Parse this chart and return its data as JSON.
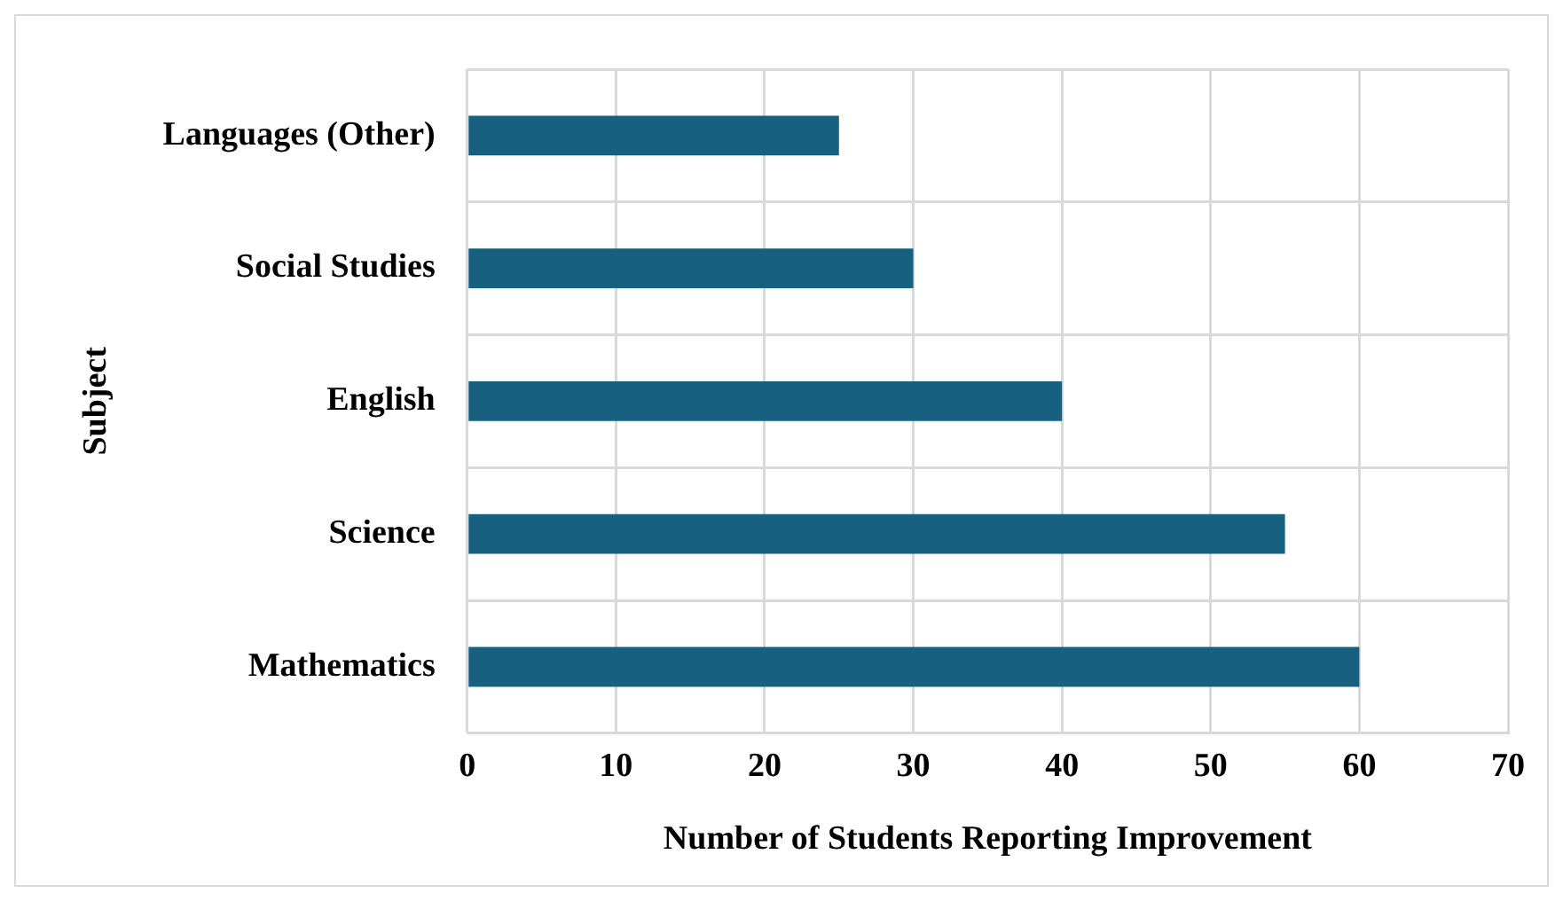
{
  "chart_data": {
    "type": "bar",
    "orientation": "horizontal",
    "xlabel": "Number of Students Reporting Improvement",
    "ylabel": "Subject",
    "categories": [
      "Languages (Other)",
      "Social Studies",
      "English",
      "Science",
      "Mathematics"
    ],
    "values": [
      25,
      30,
      40,
      55,
      60
    ],
    "color": "#17607f",
    "xlim": [
      0,
      70
    ],
    "xticks": [
      0,
      10,
      20,
      30,
      40,
      50,
      60,
      70
    ],
    "grid": true
  }
}
